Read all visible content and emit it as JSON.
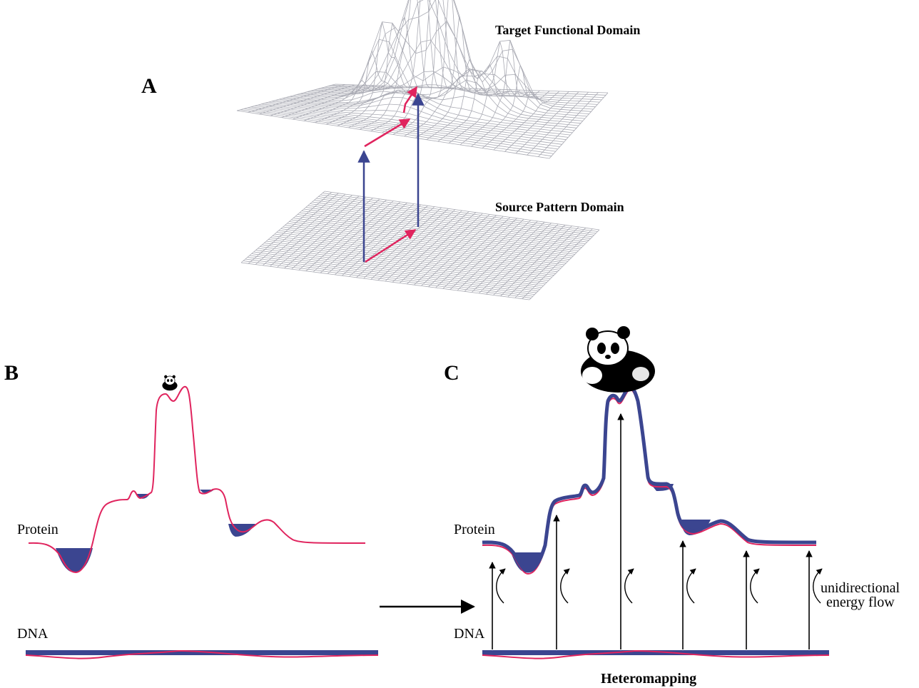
{
  "panel_a": {
    "letter": "A",
    "target_label": "Target Functional Domain",
    "source_label": "Source Pattern Domain"
  },
  "panel_b": {
    "letter": "B",
    "protein_label": "Protein",
    "dna_label": "DNA"
  },
  "panel_c": {
    "letter": "C",
    "protein_label": "Protein",
    "dna_label": "DNA",
    "energy_label_line1": "unidirectional",
    "energy_label_line2": "energy flow",
    "caption": "Heteromapping"
  },
  "colors": {
    "protein_curve": "#e0245e",
    "fill_well": "#3b4590",
    "dna_bar": "#3b4590",
    "map_arrow": "#e0245e",
    "vertical_arrow": "#3b4590",
    "mesh": "#a9aab3"
  }
}
